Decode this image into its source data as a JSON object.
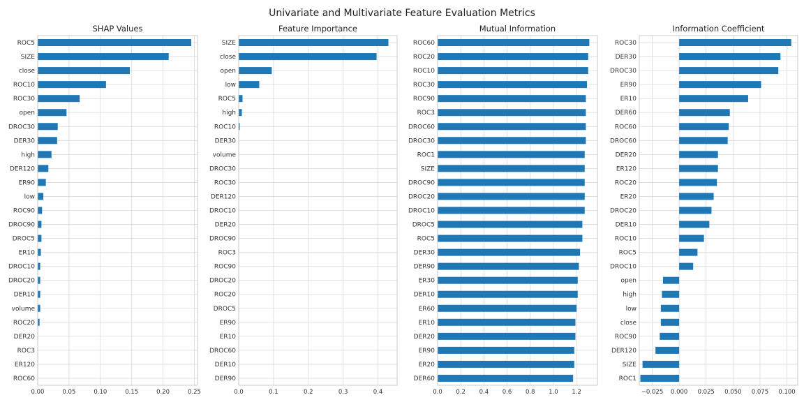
{
  "figure_title": "Univariate and Multivariate Feature Evaluation Metrics",
  "colors": {
    "bar": "#1f77b4",
    "grid": "#d9d9d9",
    "frame": "#bfbfbf"
  },
  "chart_data": [
    {
      "type": "bar",
      "orientation": "horizontal",
      "title": "SHAP Values",
      "xlim": [
        0,
        0.255
      ],
      "xticks": [
        0,
        0.05,
        0.1,
        0.15,
        0.2,
        0.25
      ],
      "xtick_labels": [
        "0.00",
        "0.05",
        "0.10",
        "0.15",
        "0.20",
        "0.25"
      ],
      "grid": true,
      "categories": [
        "ROC5",
        "SIZE",
        "close",
        "ROC10",
        "ROC30",
        "open",
        "DROC30",
        "DER30",
        "high",
        "DER120",
        "ER90",
        "low",
        "ROC90",
        "DROC90",
        "DROC5",
        "ER10",
        "DROC10",
        "DROC20",
        "DER10",
        "volume",
        "ROC20",
        "DER20",
        "ROC3",
        "ER120",
        "ROC60"
      ],
      "values": [
        0.245,
        0.209,
        0.147,
        0.109,
        0.067,
        0.046,
        0.032,
        0.031,
        0.022,
        0.017,
        0.013,
        0.009,
        0.007,
        0.006,
        0.006,
        0.005,
        0.004,
        0.004,
        0.004,
        0.004,
        0.003,
        0.0,
        0.0,
        0.0,
        0.0
      ]
    },
    {
      "type": "bar",
      "orientation": "horizontal",
      "title": "Feature Importance",
      "xlim": [
        0,
        0.455
      ],
      "xticks": [
        0,
        0.1,
        0.2,
        0.3,
        0.4
      ],
      "xtick_labels": [
        "0.0",
        "0.1",
        "0.2",
        "0.3",
        "0.4"
      ],
      "grid": true,
      "categories": [
        "SIZE",
        "close",
        "open",
        "low",
        "ROC5",
        "high",
        "ROC10",
        "DER30",
        "volume",
        "DROC30",
        "ROC30",
        "DER120",
        "DROC10",
        "DER20",
        "DROC90",
        "ROC3",
        "ROC90",
        "DROC20",
        "ROC20",
        "DROC5",
        "ER90",
        "ER10",
        "DROC60",
        "DER10",
        "DER90"
      ],
      "values": [
        0.43,
        0.396,
        0.095,
        0.059,
        0.011,
        0.009,
        0.003,
        0,
        0,
        0,
        0,
        0,
        0,
        0,
        0,
        0,
        0,
        0,
        0,
        0,
        0,
        0,
        0,
        0,
        0
      ]
    },
    {
      "type": "bar",
      "orientation": "horizontal",
      "title": "Mutual Information",
      "xlim": [
        0,
        1.38
      ],
      "xticks": [
        0,
        0.2,
        0.4,
        0.6,
        0.8,
        1.0,
        1.2
      ],
      "xtick_labels": [
        "0.0",
        "0.2",
        "0.4",
        "0.6",
        "0.8",
        "1.0",
        "1.2"
      ],
      "grid": true,
      "categories": [
        "ROC60",
        "ROC20",
        "ROC10",
        "ROC30",
        "ROC90",
        "ROC3",
        "DROC60",
        "DROC30",
        "ROC1",
        "SIZE",
        "DROC90",
        "DROC20",
        "DROC10",
        "DROC5",
        "ROC5",
        "DER30",
        "DER90",
        "ER30",
        "DER10",
        "ER60",
        "ER10",
        "DER20",
        "ER90",
        "ER20",
        "DER60"
      ],
      "values": [
        1.31,
        1.3,
        1.3,
        1.29,
        1.28,
        1.28,
        1.28,
        1.28,
        1.27,
        1.27,
        1.27,
        1.27,
        1.27,
        1.25,
        1.25,
        1.23,
        1.22,
        1.21,
        1.21,
        1.2,
        1.19,
        1.19,
        1.18,
        1.18,
        1.17
      ]
    },
    {
      "type": "bar",
      "orientation": "horizontal",
      "title": "Information Coefficient",
      "xlim": [
        -0.037,
        0.11
      ],
      "xticks": [
        -0.025,
        0.0,
        0.025,
        0.05,
        0.075,
        0.1
      ],
      "xtick_labels": [
        "−0.025",
        "0.000",
        "0.025",
        "0.050",
        "0.075",
        "0.100"
      ],
      "grid": true,
      "categories": [
        "ROC30",
        "DER30",
        "DROC30",
        "ER90",
        "ER10",
        "DER60",
        "ROC60",
        "DROC60",
        "DER20",
        "ER120",
        "ROC20",
        "ER20",
        "DROC20",
        "DER10",
        "ROC10",
        "ROC5",
        "DROC10",
        "open",
        "high",
        "low",
        "close",
        "ROC90",
        "DER120",
        "SIZE",
        "ROC1"
      ],
      "values": [
        0.104,
        0.094,
        0.092,
        0.076,
        0.064,
        0.047,
        0.046,
        0.045,
        0.036,
        0.036,
        0.035,
        0.032,
        0.03,
        0.028,
        0.023,
        0.017,
        0.013,
        -0.015,
        -0.016,
        -0.017,
        -0.017,
        -0.018,
        -0.022,
        -0.034,
        -0.036
      ]
    }
  ]
}
